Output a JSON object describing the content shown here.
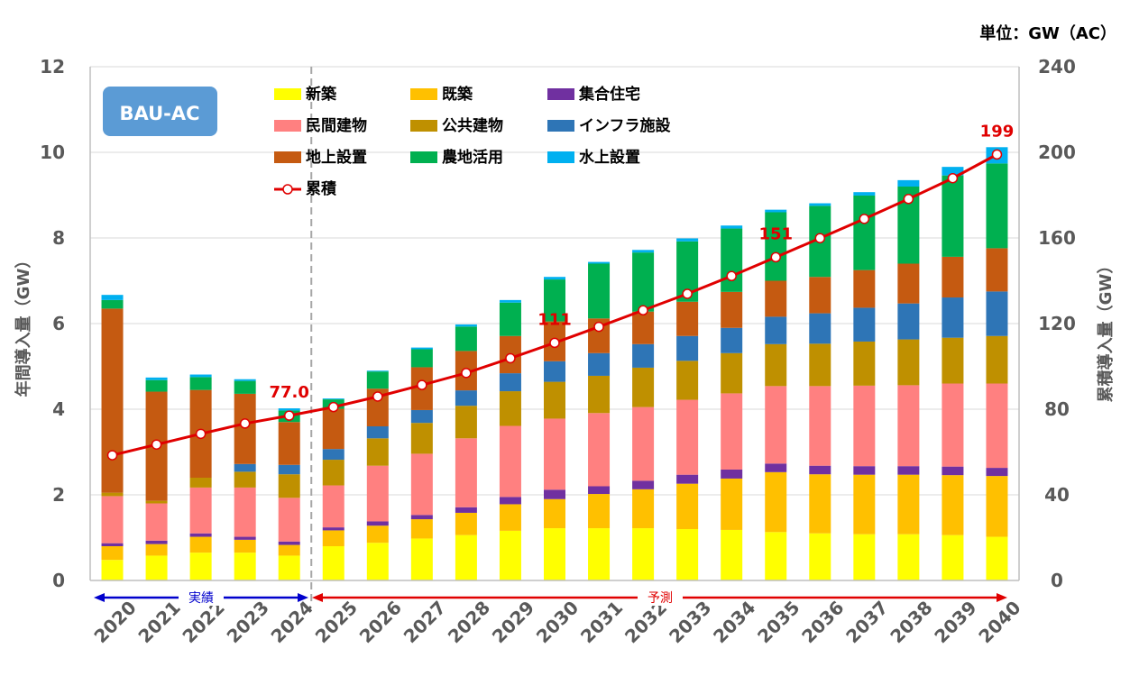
{
  "unit_label": "単位：GW（AC）",
  "badge_label": "BAU-AC",
  "period_labels": {
    "actual": "実績",
    "forecast": "予測"
  },
  "colors": {
    "新築": "#ffff00",
    "既築": "#ffc000",
    "集合住宅": "#7030a0",
    "民間建物": "#ff8080",
    "公共建物": "#bf9000",
    "インフラ施設": "#2e75b6",
    "地上設置": "#c55a11",
    "農地活用": "#00b050",
    "水上設置": "#00b0f0",
    "累積": "#e00000",
    "badge": "#5b9bd5",
    "actual_arrow": "#0000cc",
    "forecast_arrow": "#e00000"
  },
  "chart_data": {
    "type": "bar",
    "stacked": true,
    "categories": [
      "2020",
      "2021",
      "2022",
      "2023",
      "2024",
      "2025",
      "2026",
      "2027",
      "2028",
      "2029",
      "2030",
      "2031",
      "2032",
      "2033",
      "2034",
      "2035",
      "2036",
      "2037",
      "2038",
      "2039",
      "2040"
    ],
    "ylabel": "年間導入量（GW）",
    "y2label": "累積導入量（GW）",
    "ylim": [
      0,
      12
    ],
    "y2lim": [
      0,
      240
    ],
    "yticks": [
      "0",
      "2",
      "4",
      "6",
      "8",
      "10",
      "12"
    ],
    "y2ticks": [
      "0",
      "40",
      "80",
      "120",
      "160",
      "200",
      "240"
    ],
    "grid": true,
    "legend_position": "top-left",
    "series": [
      {
        "name": "新築",
        "values": [
          0.48,
          0.58,
          0.65,
          0.65,
          0.58,
          0.8,
          0.88,
          0.98,
          1.06,
          1.16,
          1.22,
          1.22,
          1.22,
          1.2,
          1.18,
          1.13,
          1.1,
          1.08,
          1.08,
          1.06,
          1.02
        ]
      },
      {
        "name": "既築",
        "values": [
          0.32,
          0.27,
          0.37,
          0.3,
          0.25,
          0.37,
          0.4,
          0.45,
          0.52,
          0.62,
          0.68,
          0.8,
          0.91,
          1.06,
          1.2,
          1.4,
          1.38,
          1.39,
          1.39,
          1.4,
          1.42
        ]
      },
      {
        "name": "集合住宅",
        "values": [
          0.07,
          0.08,
          0.08,
          0.07,
          0.08,
          0.07,
          0.1,
          0.1,
          0.13,
          0.17,
          0.22,
          0.18,
          0.2,
          0.21,
          0.21,
          0.2,
          0.2,
          0.2,
          0.2,
          0.2,
          0.19
        ]
      },
      {
        "name": "民間建物",
        "values": [
          1.1,
          0.87,
          1.07,
          1.15,
          1.02,
          0.98,
          1.3,
          1.43,
          1.61,
          1.66,
          1.66,
          1.71,
          1.72,
          1.75,
          1.78,
          1.81,
          1.86,
          1.88,
          1.89,
          1.94,
          1.97
        ]
      },
      {
        "name": "公共建物",
        "values": [
          0.08,
          0.06,
          0.23,
          0.37,
          0.55,
          0.6,
          0.64,
          0.72,
          0.76,
          0.81,
          0.86,
          0.87,
          0.92,
          0.91,
          0.94,
          0.98,
          0.99,
          1.03,
          1.07,
          1.07,
          1.11
        ]
      },
      {
        "name": "インフラ施設",
        "values": [
          0,
          0,
          0,
          0.18,
          0.22,
          0.25,
          0.28,
          0.3,
          0.36,
          0.42,
          0.48,
          0.53,
          0.55,
          0.58,
          0.59,
          0.64,
          0.71,
          0.79,
          0.84,
          0.94,
          1.04
        ]
      },
      {
        "name": "地上設置",
        "values": [
          4.3,
          2.55,
          2.05,
          1.64,
          1.0,
          0.94,
          0.88,
          1.0,
          0.92,
          0.87,
          0.93,
          0.81,
          0.76,
          0.8,
          0.84,
          0.84,
          0.85,
          0.88,
          0.93,
          0.95,
          1.01
        ]
      },
      {
        "name": "農地活用",
        "values": [
          0.2,
          0.27,
          0.3,
          0.3,
          0.27,
          0.22,
          0.4,
          0.42,
          0.57,
          0.78,
          0.98,
          1.28,
          1.38,
          1.41,
          1.48,
          1.6,
          1.66,
          1.74,
          1.8,
          1.9,
          1.98
        ]
      },
      {
        "name": "水上設置",
        "values": [
          0.12,
          0.06,
          0.06,
          0.04,
          0.05,
          0.02,
          0.02,
          0.04,
          0.05,
          0.06,
          0.06,
          0.04,
          0.06,
          0.07,
          0.07,
          0.06,
          0.06,
          0.08,
          0.15,
          0.2,
          0.38
        ]
      },
      {
        "name": "累積",
        "axis": "secondary",
        "type": "line",
        "values": [
          58.5,
          63.5,
          68.5,
          73.3,
          77.0,
          81.0,
          85.9,
          91.3,
          96.9,
          103.8,
          111.0,
          118.5,
          126.2,
          133.9,
          142.2,
          151.0,
          159.9,
          168.9,
          178.2,
          187.9,
          199
        ]
      }
    ],
    "annotations": [
      {
        "year": "2024",
        "text": "77.0"
      },
      {
        "year": "2030",
        "text": "111"
      },
      {
        "year": "2035",
        "text": "151"
      },
      {
        "year": "2040",
        "text": "199"
      }
    ]
  }
}
